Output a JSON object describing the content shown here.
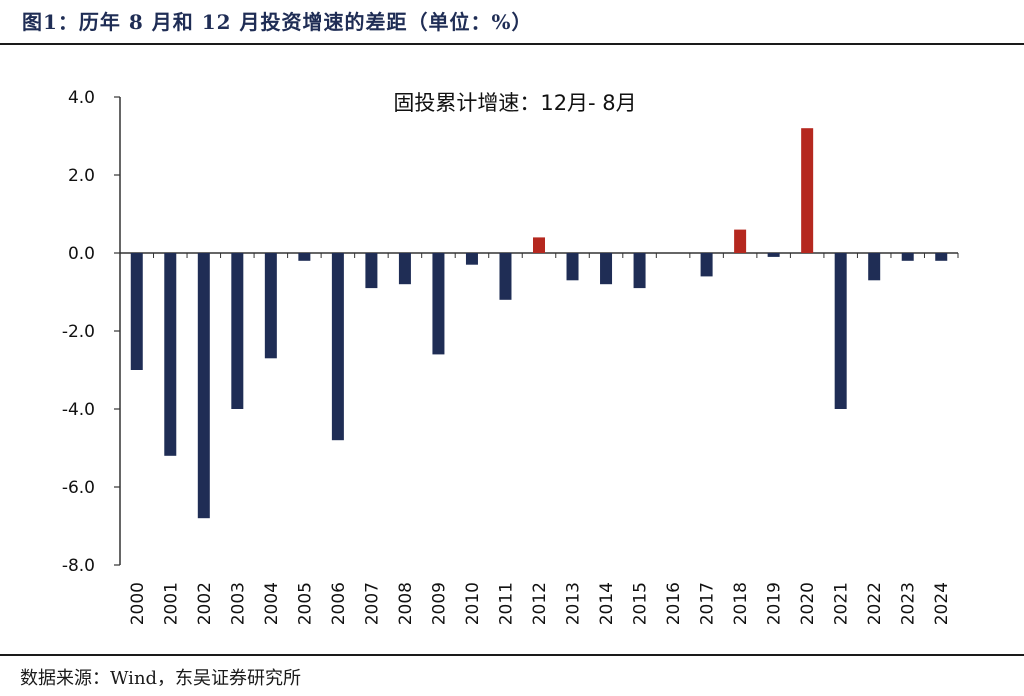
{
  "figure": {
    "title": "图1：历年 8 月和 12 月投资增速的差距（单位：%）",
    "source": "数据来源：Wind，东吴证券研究所"
  },
  "colors": {
    "negative": "#1f2d55",
    "positive": "#b5281f",
    "axis": "#333333"
  },
  "chart_data": {
    "type": "bar",
    "title": "固投累计增速：12月- 8月",
    "xlabel": "",
    "ylabel": "",
    "ylim": [
      -8.0,
      4.0
    ],
    "yticks": [
      "4.0",
      "2.0",
      "0.0",
      "-2.0",
      "-4.0",
      "-6.0",
      "-8.0"
    ],
    "ytick_values": [
      4,
      2,
      0,
      -2,
      -4,
      -6,
      -8
    ],
    "categories": [
      "2000",
      "2001",
      "2002",
      "2003",
      "2004",
      "2005",
      "2006",
      "2007",
      "2008",
      "2009",
      "2010",
      "2011",
      "2012",
      "2013",
      "2014",
      "2015",
      "2016",
      "2017",
      "2018",
      "2019",
      "2020",
      "2021",
      "2022",
      "2023",
      "2024"
    ],
    "values": [
      -3.0,
      -5.2,
      -6.8,
      -4.0,
      -2.7,
      -0.2,
      -4.8,
      -0.9,
      -0.8,
      -2.6,
      -0.3,
      -1.2,
      0.4,
      -0.7,
      -0.8,
      -0.9,
      0.0,
      -0.6,
      0.6,
      -0.1,
      3.2,
      -4.0,
      -0.7,
      -0.2,
      -0.2
    ]
  }
}
